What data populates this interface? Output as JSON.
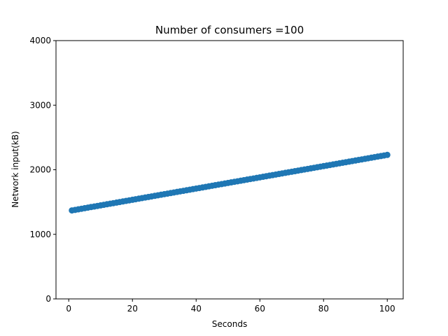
{
  "chart_data": {
    "type": "scatter",
    "title": "Number of consumers =100",
    "xlabel": "Seconds",
    "ylabel": "Network input(kB)",
    "xlim": [
      -4,
      105
    ],
    "ylim": [
      0,
      4000
    ],
    "xticks": [
      0,
      20,
      40,
      60,
      80,
      100
    ],
    "yticks": [
      0,
      1000,
      2000,
      3000,
      4000
    ],
    "grid": false,
    "marker_color": "#1f77b4",
    "series": [
      {
        "x_start": 1,
        "x_end": 100,
        "x_step": 1,
        "y_start": 1370,
        "y_end": 2230
      }
    ]
  }
}
